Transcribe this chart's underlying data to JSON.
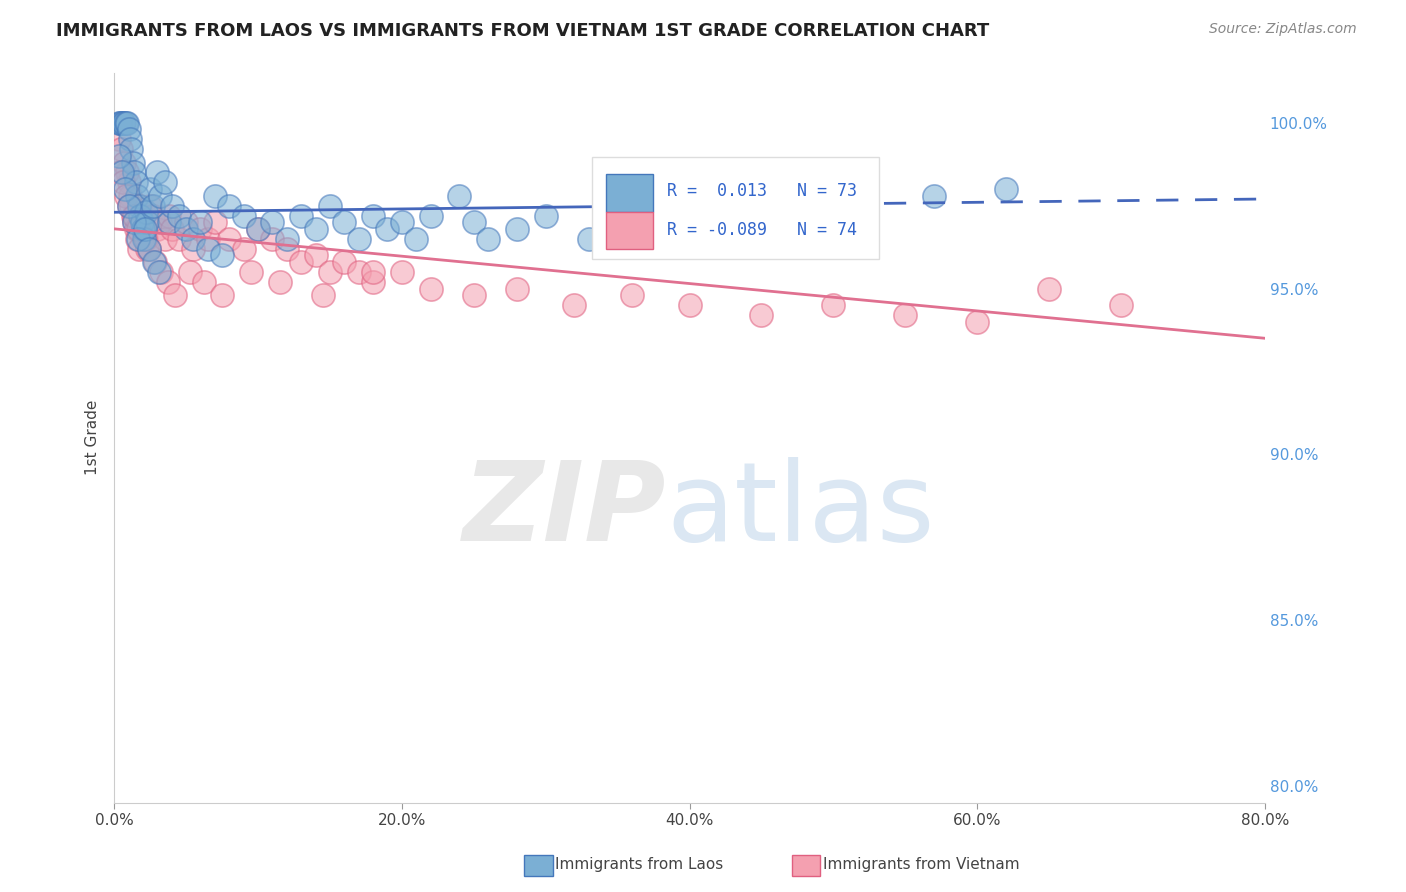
{
  "title": "IMMIGRANTS FROM LAOS VS IMMIGRANTS FROM VIETNAM 1ST GRADE CORRELATION CHART",
  "source": "Source: ZipAtlas.com",
  "ylabel": "1st Grade",
  "x_tick_vals": [
    0.0,
    20.0,
    40.0,
    60.0,
    80.0
  ],
  "y_tick_vals_right": [
    100.0,
    95.0,
    90.0,
    85.0,
    80.0
  ],
  "y_tick_labels_right": [
    "100.0%",
    "95.0%",
    "90.0%",
    "85.0%",
    "80.0%"
  ],
  "xlim": [
    0.0,
    80.0
  ],
  "ylim": [
    79.5,
    101.5
  ],
  "legend_r_blue": "0.013",
  "legend_n_blue": "73",
  "legend_r_pink": "-0.089",
  "legend_n_pink": "74",
  "blue_color": "#7BAFD4",
  "pink_color": "#F4A0B0",
  "blue_edge_color": "#4477BB",
  "pink_edge_color": "#E06080",
  "trendline_blue_color": "#4466BB",
  "trendline_pink_color": "#E07090",
  "legend_label_blue": "Immigrants from Laos",
  "legend_label_pink": "Immigrants from Vietnam",
  "blue_trend_y0": 97.3,
  "blue_trend_y1": 97.7,
  "blue_solid_end_x": 40.0,
  "pink_trend_y0": 96.8,
  "pink_trend_y1": 93.5,
  "blue_x": [
    0.3,
    0.4,
    0.5,
    0.6,
    0.7,
    0.8,
    0.9,
    1.0,
    1.1,
    1.2,
    1.3,
    1.4,
    1.5,
    1.6,
    1.7,
    1.8,
    1.9,
    2.0,
    2.1,
    2.2,
    2.3,
    2.5,
    2.7,
    3.0,
    3.2,
    3.5,
    3.8,
    4.0,
    4.5,
    5.0,
    5.5,
    6.0,
    6.5,
    7.0,
    7.5,
    8.0,
    9.0,
    10.0,
    11.0,
    12.0,
    13.0,
    14.0,
    15.0,
    16.0,
    17.0,
    18.0,
    19.0,
    20.0,
    21.0,
    22.0,
    24.0,
    25.0,
    26.0,
    28.0,
    30.0,
    33.0,
    36.0,
    40.0,
    43.0,
    47.0,
    52.0,
    57.0,
    62.0,
    0.35,
    0.55,
    0.75,
    1.05,
    1.35,
    1.65,
    2.15,
    2.45,
    2.75,
    3.15
  ],
  "blue_y": [
    100.0,
    100.0,
    100.0,
    100.0,
    100.0,
    100.0,
    100.0,
    99.8,
    99.5,
    99.2,
    98.8,
    98.5,
    98.2,
    97.8,
    97.5,
    97.2,
    97.0,
    96.8,
    96.5,
    97.3,
    97.0,
    98.0,
    97.5,
    98.5,
    97.8,
    98.2,
    97.0,
    97.5,
    97.2,
    96.8,
    96.5,
    97.0,
    96.2,
    97.8,
    96.0,
    97.5,
    97.2,
    96.8,
    97.0,
    96.5,
    97.2,
    96.8,
    97.5,
    97.0,
    96.5,
    97.2,
    96.8,
    97.0,
    96.5,
    97.2,
    97.8,
    97.0,
    96.5,
    96.8,
    97.2,
    96.5,
    97.0,
    97.5,
    96.8,
    97.2,
    97.5,
    97.8,
    98.0,
    99.0,
    98.5,
    98.0,
    97.5,
    97.0,
    96.5,
    96.8,
    96.2,
    95.8,
    95.5
  ],
  "pink_x": [
    0.3,
    0.5,
    0.7,
    0.9,
    1.0,
    1.1,
    1.2,
    1.3,
    1.4,
    1.5,
    1.6,
    1.7,
    1.8,
    1.9,
    2.0,
    2.1,
    2.2,
    2.3,
    2.5,
    2.7,
    3.0,
    3.2,
    3.5,
    3.8,
    4.0,
    4.5,
    5.0,
    5.5,
    6.0,
    6.5,
    7.0,
    8.0,
    9.0,
    10.0,
    11.0,
    12.0,
    13.0,
    14.0,
    15.0,
    16.0,
    17.0,
    18.0,
    20.0,
    22.0,
    25.0,
    28.0,
    32.0,
    36.0,
    40.0,
    45.0,
    50.0,
    55.0,
    60.0,
    65.0,
    70.0,
    0.4,
    0.6,
    0.8,
    1.05,
    1.35,
    1.65,
    2.15,
    2.45,
    2.85,
    3.25,
    3.75,
    4.25,
    5.25,
    6.25,
    7.5,
    9.5,
    11.5,
    14.5,
    18.0
  ],
  "pink_y": [
    99.5,
    99.2,
    98.8,
    98.5,
    98.2,
    97.8,
    97.5,
    97.2,
    97.0,
    96.8,
    96.5,
    96.2,
    97.5,
    97.2,
    97.0,
    96.8,
    96.5,
    96.2,
    97.5,
    97.2,
    96.8,
    97.0,
    96.5,
    97.2,
    96.8,
    96.5,
    97.0,
    96.2,
    96.8,
    96.5,
    97.0,
    96.5,
    96.2,
    96.8,
    96.5,
    96.2,
    95.8,
    96.0,
    95.5,
    95.8,
    95.5,
    95.2,
    95.5,
    95.0,
    94.8,
    95.0,
    94.5,
    94.8,
    94.5,
    94.2,
    94.5,
    94.2,
    94.0,
    95.0,
    94.5,
    98.5,
    98.2,
    97.8,
    97.5,
    97.2,
    96.8,
    96.5,
    96.2,
    95.8,
    95.5,
    95.2,
    94.8,
    95.5,
    95.2,
    94.8,
    95.5,
    95.2,
    94.8,
    95.5
  ]
}
